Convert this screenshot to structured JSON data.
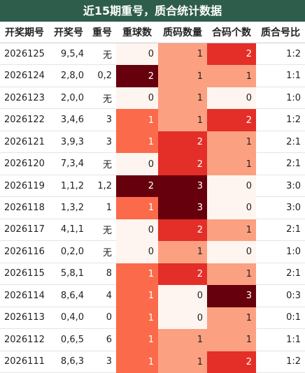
{
  "title": "近15期重号，质合统计数据",
  "headers": [
    "开奖期号",
    "开奖号",
    "重号",
    "重球数",
    "质码数量",
    "合码个数",
    "质合号比"
  ],
  "heat_columns": [
    3,
    4,
    5
  ],
  "rows": [
    [
      "2026125",
      "9,5,4",
      "无",
      0,
      1,
      2,
      "1:2"
    ],
    [
      "2026124",
      "2,8,0",
      "0,2",
      2,
      1,
      1,
      "1:1"
    ],
    [
      "2026123",
      "2,0,0",
      "无",
      0,
      1,
      0,
      "1:0"
    ],
    [
      "2026122",
      "3,4,6",
      "3",
      1,
      1,
      2,
      "1:2"
    ],
    [
      "2026121",
      "3,9,3",
      "3",
      1,
      2,
      1,
      "2:1"
    ],
    [
      "2026120",
      "7,3,4",
      "无",
      0,
      2,
      1,
      "2:1"
    ],
    [
      "2026119",
      "1,1,2",
      "1,2",
      2,
      3,
      0,
      "3:0"
    ],
    [
      "2026118",
      "1,3,2",
      "1",
      1,
      3,
      0,
      "3:0"
    ],
    [
      "2026117",
      "4,1,1",
      "无",
      0,
      2,
      1,
      "2:1"
    ],
    [
      "2026116",
      "0,2,0",
      "无",
      0,
      1,
      0,
      "1:0"
    ],
    [
      "2026115",
      "5,8,1",
      "8",
      1,
      2,
      1,
      "2:1"
    ],
    [
      "2026114",
      "8,6,4",
      "4",
      1,
      0,
      3,
      "0:3"
    ],
    [
      "2026113",
      "0,4,0",
      "0",
      1,
      0,
      1,
      "0:1"
    ],
    [
      "2026112",
      "0,6,5",
      "6",
      1,
      1,
      1,
      "1:1"
    ],
    [
      "2026111",
      "8,6,3",
      "3",
      1,
      1,
      2,
      "1:2"
    ]
  ]
}
